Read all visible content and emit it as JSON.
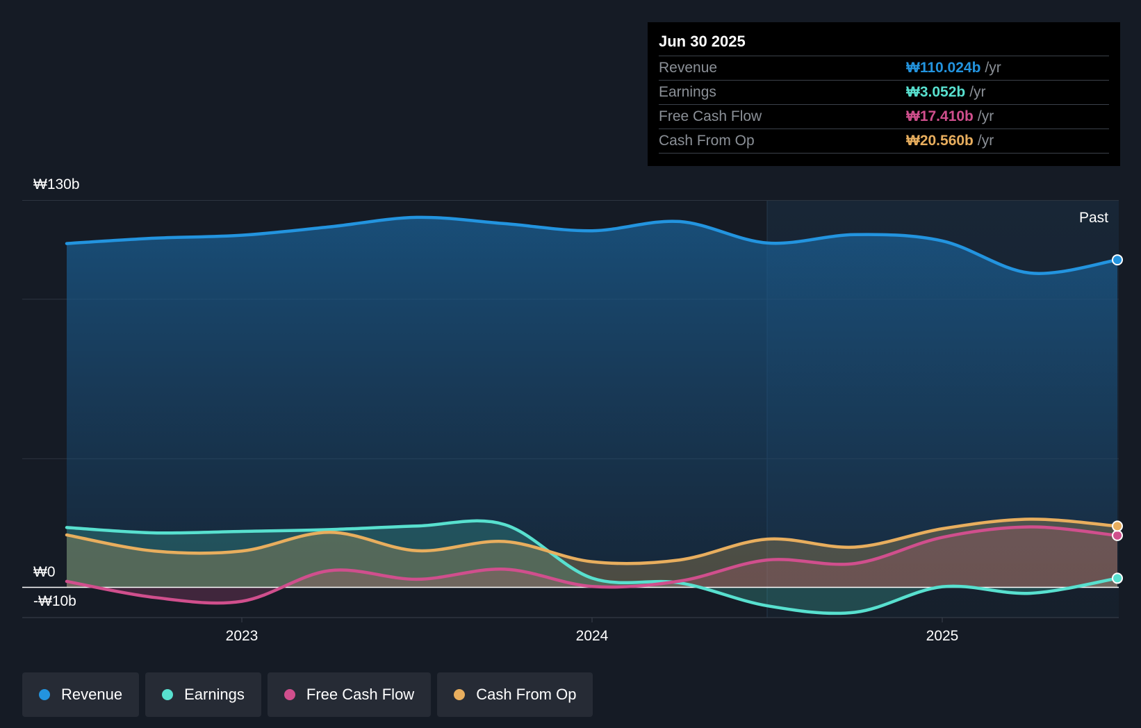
{
  "chart_data": {
    "type": "area",
    "y_ticks": [
      {
        "value": 130,
        "label": "₩130b"
      },
      {
        "value": 0,
        "label": "₩0"
      },
      {
        "value": -10,
        "label": "-₩10b"
      }
    ],
    "ylim": [
      -10,
      130
    ],
    "x_ticks": [
      {
        "value": 2023.0,
        "label": "2023"
      },
      {
        "value": 2024.0,
        "label": "2024"
      },
      {
        "value": 2025.0,
        "label": "2025"
      }
    ],
    "xlim": [
      2022.37,
      2025.5
    ],
    "past_start": 2024.5,
    "past_label": "Past",
    "series": [
      {
        "name": "Revenue",
        "color": "#2394df",
        "x": [
          2022.5,
          2022.75,
          2023.0,
          2023.25,
          2023.5,
          2023.75,
          2024.0,
          2024.25,
          2024.5,
          2024.75,
          2025.0,
          2025.25,
          2025.5
        ],
        "values": [
          115.5,
          117.3,
          118.3,
          121.1,
          124.3,
          122.2,
          119.8,
          122.9,
          115.7,
          118.5,
          116.4,
          105.6,
          110.024
        ]
      },
      {
        "name": "Earnings",
        "color": "#58e0cf",
        "x": [
          2022.5,
          2022.75,
          2023.0,
          2023.25,
          2023.5,
          2023.75,
          2024.0,
          2024.25,
          2024.5,
          2024.75,
          2025.0,
          2025.25,
          2025.5
        ],
        "values": [
          20.1,
          18.3,
          18.8,
          19.4,
          20.6,
          21.1,
          3.1,
          1.5,
          -6.2,
          -8.4,
          0.2,
          -2.0,
          3.052
        ]
      },
      {
        "name": "Free Cash Flow",
        "color": "#d04f8d",
        "x": [
          2022.5,
          2022.75,
          2023.0,
          2023.25,
          2023.5,
          2023.75,
          2024.0,
          2024.25,
          2024.5,
          2024.75,
          2025.0,
          2025.25,
          2025.5
        ],
        "values": [
          2.0,
          -3.4,
          -4.7,
          5.6,
          2.7,
          6.1,
          0.3,
          2.1,
          9.2,
          8.0,
          16.8,
          20.3,
          17.41
        ]
      },
      {
        "name": "Cash From Op",
        "color": "#e8ae5e",
        "x": [
          2022.5,
          2022.75,
          2023.0,
          2023.25,
          2023.5,
          2023.75,
          2024.0,
          2024.25,
          2024.5,
          2024.75,
          2025.0,
          2025.25,
          2025.5
        ],
        "values": [
          17.6,
          12.2,
          12.2,
          18.5,
          12.3,
          15.4,
          8.6,
          9.2,
          16.2,
          13.5,
          19.7,
          22.9,
          20.56
        ]
      }
    ]
  },
  "tooltip": {
    "date": "Jun 30 2025",
    "rows": [
      {
        "label": "Revenue",
        "value": "₩110.024b",
        "unit": "/yr",
        "color": "#2394df"
      },
      {
        "label": "Earnings",
        "value": "₩3.052b",
        "unit": "/yr",
        "color": "#58e0cf"
      },
      {
        "label": "Free Cash Flow",
        "value": "₩17.410b",
        "unit": "/yr",
        "color": "#d04f8d"
      },
      {
        "label": "Cash From Op",
        "value": "₩20.560b",
        "unit": "/yr",
        "color": "#e8ae5e"
      }
    ]
  },
  "legend": [
    {
      "label": "Revenue",
      "color": "#2394df"
    },
    {
      "label": "Earnings",
      "color": "#58e0cf"
    },
    {
      "label": "Free Cash Flow",
      "color": "#d04f8d"
    },
    {
      "label": "Cash From Op",
      "color": "#e8ae5e"
    }
  ]
}
